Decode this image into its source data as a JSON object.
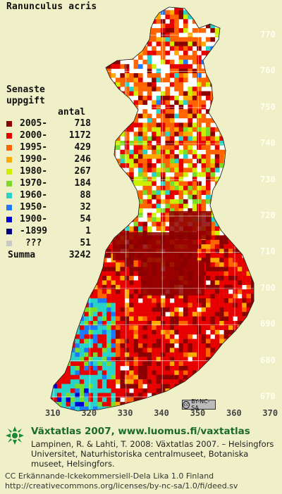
{
  "title": "Ranunculus acris",
  "legend": {
    "heading_line1": "Senaste",
    "heading_line2": "uppgift",
    "count_label": "antal",
    "rows": [
      {
        "period": "2005-",
        "count": "718",
        "color": "#8b0000"
      },
      {
        "period": "2000-",
        "count": "1172",
        "color": "#e60000"
      },
      {
        "period": "1995-",
        "count": "429",
        "color": "#ff6400"
      },
      {
        "period": "1990-",
        "count": "246",
        "color": "#ffaa00"
      },
      {
        "period": "1980-",
        "count": "267",
        "color": "#ccf000"
      },
      {
        "period": "1970-",
        "count": "184",
        "color": "#78dc28"
      },
      {
        "period": "1960-",
        "count": "88",
        "color": "#28d2c8"
      },
      {
        "period": "1950-",
        "count": "32",
        "color": "#1e78ff"
      },
      {
        "period": "1900-",
        "count": "54",
        "color": "#0000d2"
      },
      {
        "period": "-1899",
        "count": "1",
        "color": "#000080"
      },
      {
        "period": " ???",
        "count": "51",
        "color": "#c8c8c8"
      }
    ],
    "total_label": "Summa",
    "total_count": "3242"
  },
  "axes": {
    "y_ticks": [
      "770",
      "760",
      "750",
      "740",
      "730",
      "720",
      "710",
      "700",
      "690",
      "680",
      "670"
    ],
    "x_ticks": [
      "310",
      "320",
      "330",
      "340",
      "350",
      "360",
      "370"
    ]
  },
  "license_badge": "BY-NC-SA",
  "footer": {
    "title": "Växtatlas 2007, www.luomus.fi/vaxtatlas",
    "citation": "Lampinen, R. & Lahti, T. 2008: Växtatlas 2007. – Helsingfors Universitet, Naturhistoriska centralmuseet, Botaniska museet, Helsingfors.",
    "license_line1": "CC Erkännande-Ickekommersiell-Dela Lika 1.0 Finland",
    "license_line2": "http://creativecommons.org/licenses/by-nc-sa/1.0/fi/deed.sv"
  },
  "colors": {
    "background": "#f0f0c8",
    "grid_line": "#ffffff",
    "footer_title": "#1a6a2a"
  }
}
